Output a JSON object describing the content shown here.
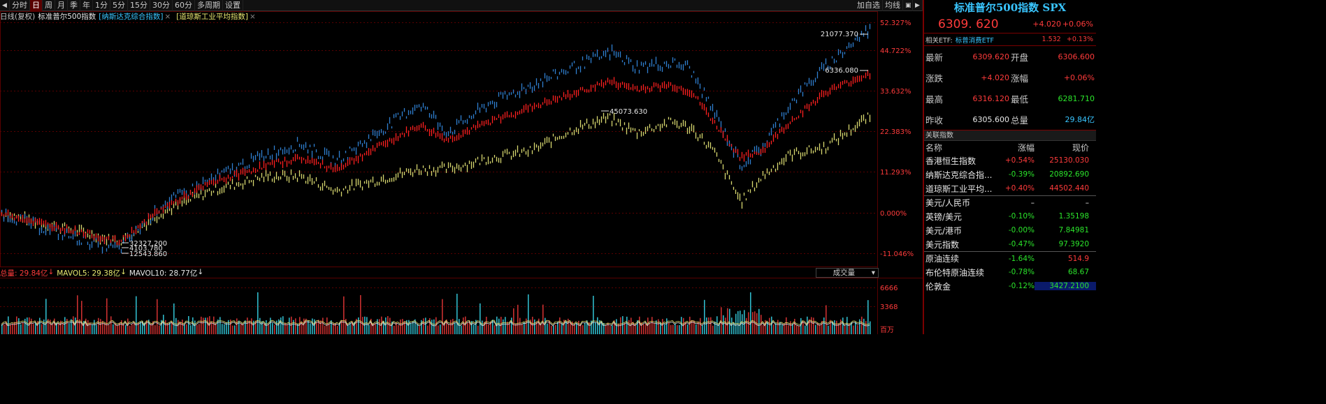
{
  "toolbar": {
    "periods": [
      "分时",
      "日",
      "周",
      "月",
      "季",
      "年",
      "1分",
      "5分",
      "15分",
      "30分",
      "60分",
      "多周期",
      "设置"
    ],
    "active_period": "日",
    "right_buttons": [
      "加自选",
      "均线"
    ]
  },
  "legend": {
    "main_label": "日线(复权)",
    "main_name": "标准普尔500指数",
    "compare1": "[纳斯达克综合指数]",
    "compare2": "[道琼斯工业平均指数]",
    "close_glyph": "×"
  },
  "chart": {
    "y_axis_labels": [
      "52.327%",
      "44.722%",
      "33.632%",
      "22.383%",
      "11.293%",
      "0.000%",
      "-11.046%"
    ],
    "annotations": {
      "nasdaq_high": "21077.370",
      "spx_high": "6336.080",
      "dow_high": "45073.630",
      "dow_low": "32327.200",
      "spx_low": "4103.780",
      "nasdaq_low": "12543.860"
    },
    "colors": {
      "nasdaq": "#2f7fd0",
      "spx": "#ff2020",
      "dow": "#d8d870",
      "grid": "#5a0000"
    }
  },
  "volume": {
    "total_label": "总量: 29.84亿",
    "mavol5_label": "MAVOL5: 29.38亿",
    "mavol10_label": "MAVOL10: 28.77亿",
    "arrow_down": "↓",
    "selector_label": "成交量",
    "selector_arrow": "▾",
    "axis_labels": [
      "6666",
      "3368",
      "百万"
    ]
  },
  "panel": {
    "title": "标准普尔500指数 SPX",
    "price": "6309. 620",
    "change": "+4.020",
    "change_pct": "+0.06%",
    "etf_label": "相关ETF:",
    "etf_name": "标普消费ETF",
    "etf_price": "1.532",
    "etf_pct": "+0.13%",
    "quotes": [
      {
        "k1": "最新",
        "v1": "6309.620",
        "c1": "red",
        "k2": "开盘",
        "v2": "6306.600",
        "c2": "red"
      },
      {
        "k1": "涨跌",
        "v1": "+4.020",
        "c1": "red",
        "k2": "涨幅",
        "v2": "+0.06%",
        "c2": "red"
      },
      {
        "k1": "最高",
        "v1": "6316.120",
        "c1": "red",
        "k2": "最低",
        "v2": "6281.710",
        "c2": "green"
      },
      {
        "k1": "昨收",
        "v1": "6305.600",
        "c1": "white",
        "k2": "总量",
        "v2": "29.84亿",
        "c2": "cyan"
      }
    ],
    "related_title": "关联指数",
    "related_head": {
      "name": "名称",
      "pct": "涨幅",
      "val": "现价"
    },
    "related": [
      {
        "name": "香港恒生指数",
        "pct": "+0.54%",
        "pc": "red",
        "val": "25130.030",
        "vc": "red",
        "group": 0
      },
      {
        "name": "纳斯达克综合指...",
        "pct": "-0.39%",
        "pc": "green",
        "val": "20892.690",
        "vc": "green",
        "group": 0
      },
      {
        "name": "道琼斯工业平均...",
        "pct": "+0.40%",
        "pc": "red",
        "val": "44502.440",
        "vc": "red",
        "group": 0
      },
      {
        "name": "美元/人民币",
        "pct": "–",
        "pc": "white",
        "val": "–",
        "vc": "white",
        "group": 1
      },
      {
        "name": "英镑/美元",
        "pct": "-0.10%",
        "pc": "green",
        "val": "1.35198",
        "vc": "green",
        "group": 1
      },
      {
        "name": "美元/港币",
        "pct": "-0.00%",
        "pc": "green",
        "val": "7.84981",
        "vc": "green",
        "group": 1
      },
      {
        "name": "美元指数",
        "pct": "-0.47%",
        "pc": "green",
        "val": "97.3920",
        "vc": "green",
        "group": 1
      },
      {
        "name": "原油连续",
        "pct": "-1.64%",
        "pc": "green",
        "val": "514.9",
        "vc": "red",
        "group": 2
      },
      {
        "name": "布伦特原油连续",
        "pct": "-0.78%",
        "pc": "green",
        "val": "68.67",
        "vc": "green",
        "group": 2
      },
      {
        "name": "伦敦金",
        "pct": "-0.12%",
        "pc": "green",
        "val": "3427.2100",
        "vc": "green",
        "group": 2,
        "highlight": true
      }
    ]
  }
}
